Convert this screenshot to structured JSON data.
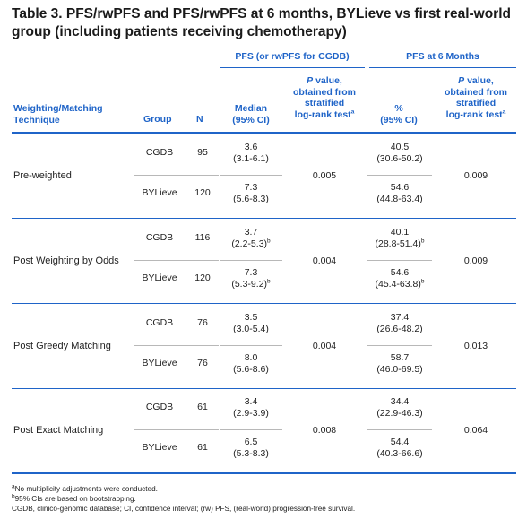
{
  "title_line1": "Table 3. PFS/rwPFS and PFS/rwPFS at 6 months, BYLieve vs first real-world",
  "title_line2": "group (including patients receiving chemotherapy)",
  "group_headers": {
    "pfs": "PFS (or rwPFS for CGDB)",
    "pfs6": "PFS at 6 Months"
  },
  "columns": {
    "technique": [
      "Weighting/Matching",
      "Technique"
    ],
    "group": "Group",
    "n": "N",
    "median": [
      "Median",
      "(95% CI)"
    ],
    "pval_pre": "P",
    "pval": [
      " value,",
      "obtained from",
      "stratified",
      "log-rank test"
    ],
    "pval_sup": "a",
    "pct": [
      "%",
      "(95% CI)"
    ]
  },
  "blocks": [
    {
      "technique": "Pre-weighted",
      "rows": [
        {
          "group": "CGDB",
          "n": "95",
          "median": "3.6",
          "median_ci": "(3.1-6.1)",
          "median_sup": "",
          "pct": "40.5",
          "pct_ci": "(30.6-50.2)",
          "pct_sup": ""
        },
        {
          "group": "BYLieve",
          "n": "120",
          "median": "7.3",
          "median_ci": "(5.6-8.3)",
          "median_sup": "",
          "pct": "54.6",
          "pct_ci": "(44.8-63.4)",
          "pct_sup": ""
        }
      ],
      "p_pfs": "0.005",
      "p_pfs6": "0.009"
    },
    {
      "technique": "Post Weighting by Odds",
      "rows": [
        {
          "group": "CGDB",
          "n": "116",
          "median": "3.7",
          "median_ci": "(2.2-5.3)",
          "median_sup": "b",
          "pct": "40.1",
          "pct_ci": "(28.8-51.4)",
          "pct_sup": "b"
        },
        {
          "group": "BYLieve",
          "n": "120",
          "median": "7.3",
          "median_ci": "(5.3-9.2)",
          "median_sup": "b",
          "pct": "54.6",
          "pct_ci": "(45.4-63.8)",
          "pct_sup": "b"
        }
      ],
      "p_pfs": "0.004",
      "p_pfs6": "0.009"
    },
    {
      "technique": "Post Greedy Matching",
      "rows": [
        {
          "group": "CGDB",
          "n": "76",
          "median": "3.5",
          "median_ci": "(3.0-5.4)",
          "median_sup": "",
          "pct": "37.4",
          "pct_ci": "(26.6-48.2)",
          "pct_sup": ""
        },
        {
          "group": "BYLieve",
          "n": "76",
          "median": "8.0",
          "median_ci": "(5.6-8.6)",
          "median_sup": "",
          "pct": "58.7",
          "pct_ci": "(46.0-69.5)",
          "pct_sup": ""
        }
      ],
      "p_pfs": "0.004",
      "p_pfs6": "0.013"
    },
    {
      "technique": "Post Exact Matching",
      "rows": [
        {
          "group": "CGDB",
          "n": "61",
          "median": "3.4",
          "median_ci": "(2.9-3.9)",
          "median_sup": "",
          "pct": "34.4",
          "pct_ci": "(22.9-46.3)",
          "pct_sup": ""
        },
        {
          "group": "BYLieve",
          "n": "61",
          "median": "6.5",
          "median_ci": "(5.3-8.3)",
          "median_sup": "",
          "pct": "54.4",
          "pct_ci": "(40.3-66.6)",
          "pct_sup": ""
        }
      ],
      "p_pfs": "0.008",
      "p_pfs6": "0.064"
    }
  ],
  "footnotes": [
    {
      "sup": "a",
      "text": "No multiplicity adjustments were conducted."
    },
    {
      "sup": "b",
      "text": "95% CIs are based on bootstrapping."
    },
    {
      "sup": "",
      "text": "CGDB, clinico-genomic database; CI, confidence interval; (rw) PFS, (real-world) progression-free survival."
    }
  ],
  "colors": {
    "accent": "#1f64c8",
    "rule_gray": "#b8b8b8",
    "text": "#222222"
  }
}
